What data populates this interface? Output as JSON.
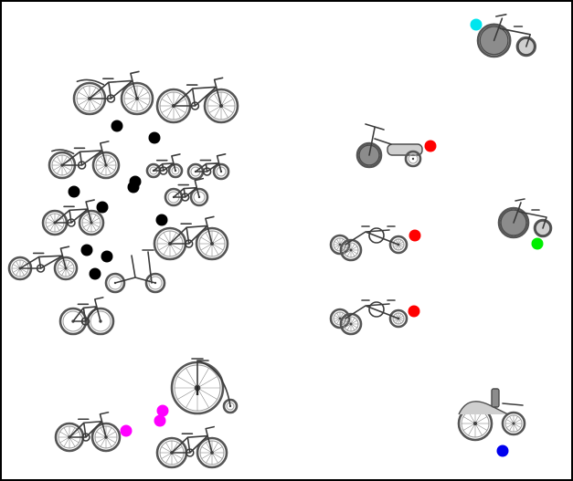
{
  "colors": {
    "black": "#000000",
    "cyan": "#00e5ee",
    "red": "#ff0000",
    "green": "#00ee00",
    "magenta": "#ff00ff",
    "blue": "#0000ee",
    "frame": "#000000",
    "background": "#ffffff"
  },
  "vehicles": [
    {
      "name": "tricycle",
      "kind": "tricycle"
    },
    {
      "name": "bicycle",
      "kind": "bicycle"
    },
    {
      "name": "penny-farthing",
      "kind": "penny-farthing"
    },
    {
      "name": "wheelchair",
      "kind": "wheelchair"
    }
  ]
}
